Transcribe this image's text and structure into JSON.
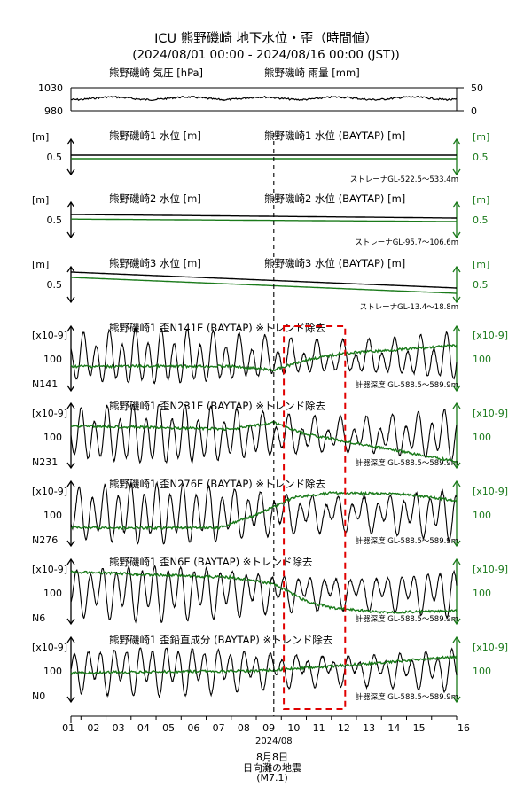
{
  "title": "ICU 熊野磯崎 地下水位・歪（時間値）",
  "subtitle": "(2024/08/01 00:00 - 2024/08/16 00:00 (JST))",
  "colors": {
    "black": "#000000",
    "green": "#1a7a1a",
    "event": "#e00000"
  },
  "x_axis": {
    "ticks": [
      "01",
      "02",
      "03",
      "04",
      "05",
      "06",
      "07",
      "08",
      "09",
      "10",
      "11",
      "12",
      "13",
      "14",
      "15",
      "16"
    ],
    "month_label": "2024/08"
  },
  "event": {
    "date_label": "8月8日",
    "name": "日向灘の地震",
    "magnitude": "(M7.1)",
    "day": 8.7,
    "box_start": 9.1,
    "box_end": 11.55
  },
  "chart_data": [
    {
      "type": "line",
      "left_title": "熊野磯崎 気圧 [hPa]",
      "right_title": "熊野磯崎 雨量 [mm]",
      "left_ticks": [
        "1030",
        "980"
      ],
      "right_ticks": [
        "50",
        "0"
      ],
      "series": [
        {
          "color": "black",
          "mode": "flat",
          "level": 1010,
          "noise": 2
        }
      ],
      "ylim": [
        980,
        1030
      ]
    },
    {
      "type": "line",
      "left_title": "熊野磯崎1 水位 [m]",
      "right_title": "熊野磯崎1 水位 (BAYTAP) [m]",
      "left_unit": "[m]",
      "right_unit": "[m]",
      "left_value": "0.5",
      "right_value": "0.5",
      "note": "ストレーナGL-522.5～533.4m",
      "series": [
        {
          "color": "black",
          "mode": "linear",
          "start": 0.55,
          "end": 0.55
        },
        {
          "color": "green",
          "mode": "linear",
          "start": 0.45,
          "end": 0.45
        }
      ]
    },
    {
      "type": "line",
      "left_title": "熊野磯崎2 水位 [m]",
      "right_title": "熊野磯崎2 水位 (BAYTAP) [m]",
      "left_unit": "[m]",
      "right_unit": "[m]",
      "left_value": "0.5",
      "right_value": "0.5",
      "note": "ストレーナGL-95.7～106.6m",
      "series": [
        {
          "color": "black",
          "mode": "linear",
          "start": 0.65,
          "end": 0.55
        },
        {
          "color": "green",
          "mode": "linear",
          "start": 0.52,
          "end": 0.45
        }
      ]
    },
    {
      "type": "line",
      "left_title": "熊野磯崎3 水位 [m]",
      "right_title": "熊野磯崎3 水位 (BAYTAP) [m]",
      "left_unit": "[m]",
      "right_unit": "[m]",
      "left_value": "0.5",
      "right_value": "0.5",
      "note": "ストレーナGL-13.4～18.8m",
      "series": [
        {
          "color": "black",
          "mode": "linear",
          "start": 0.85,
          "end": 0.4
        },
        {
          "color": "green",
          "mode": "linear",
          "start": 0.7,
          "end": 0.25
        }
      ]
    },
    {
      "type": "line",
      "left_title": "熊野磯崎1 歪N141E (BAYTAP) ※トレンド除去",
      "left_unit": "[x10-9]",
      "right_unit": "[x10-9]",
      "left_value": "100",
      "right_value": "100",
      "component": "N141",
      "note": "計器深度 GL-588.5～589.9m",
      "series": [
        {
          "color": "black",
          "mode": "tidal",
          "amp": 0.35,
          "base": [
            [
              1,
              0.5
            ],
            [
              16,
              0.5
            ]
          ]
        },
        {
          "color": "green",
          "mode": "trend",
          "base": [
            [
              1,
              0.62
            ],
            [
              7,
              0.62
            ],
            [
              8.7,
              0.68
            ],
            [
              10,
              0.52
            ],
            [
              11.5,
              0.42
            ],
            [
              16,
              0.3
            ]
          ]
        }
      ]
    },
    {
      "type": "line",
      "left_title": "熊野磯崎1 歪N231E (BAYTAP) ※トレンド除去",
      "left_unit": "[x10-9]",
      "right_unit": "[x10-9]",
      "left_value": "100",
      "right_value": "100",
      "component": "N231",
      "note": "計器深度 GL-588.5～589.9m",
      "series": [
        {
          "color": "black",
          "mode": "tidal",
          "amp": 0.38,
          "base": [
            [
              1,
              0.5
            ],
            [
              16,
              0.5
            ]
          ]
        },
        {
          "color": "green",
          "mode": "trend",
          "base": [
            [
              1,
              0.35
            ],
            [
              7,
              0.4
            ],
            [
              8.7,
              0.3
            ],
            [
              10,
              0.48
            ],
            [
              12,
              0.62
            ],
            [
              16,
              0.9
            ]
          ]
        }
      ]
    },
    {
      "type": "line",
      "left_title": "熊野磯崎1 歪N276E (BAYTAP) ※トレンド除去",
      "left_unit": "[x10-9]",
      "right_unit": "[x10-9]",
      "left_value": "100",
      "right_value": "100",
      "component": "N276",
      "note": "計器深度 GL-588.5～589.9m",
      "series": [
        {
          "color": "black",
          "mode": "tidal",
          "amp": 0.38,
          "base": [
            [
              1,
              0.5
            ],
            [
              16,
              0.5
            ]
          ]
        },
        {
          "color": "green",
          "mode": "trend",
          "base": [
            [
              1,
              0.72
            ],
            [
              6.5,
              0.72
            ],
            [
              8,
              0.52
            ],
            [
              9.5,
              0.25
            ],
            [
              11,
              0.18
            ],
            [
              14,
              0.2
            ],
            [
              16,
              0.3
            ]
          ]
        }
      ]
    },
    {
      "type": "line",
      "left_title": "熊野磯崎1 歪N6E (BAYTAP) ※トレンド除去",
      "left_unit": "[x10-9]",
      "right_unit": "[x10-9]",
      "left_value": "100",
      "right_value": "100",
      "component": "N6",
      "note": "計器深度 GL-588.5～589.9m",
      "series": [
        {
          "color": "black",
          "mode": "tidal",
          "amp": 0.35,
          "base": [
            [
              1,
              0.5
            ],
            [
              16,
              0.5
            ]
          ]
        },
        {
          "color": "green",
          "mode": "trend",
          "base": [
            [
              1,
              0.2
            ],
            [
              7,
              0.28
            ],
            [
              8.7,
              0.38
            ],
            [
              10,
              0.65
            ],
            [
              11,
              0.75
            ],
            [
              13,
              0.82
            ],
            [
              16,
              0.8
            ]
          ]
        }
      ]
    },
    {
      "type": "line",
      "left_title": "熊野磯崎1 歪鉛直成分 (BAYTAP) ※トレンド除去",
      "left_unit": "[x10-9]",
      "right_unit": "[x10-9]",
      "left_value": "100",
      "right_value": "100",
      "component": "N0",
      "note": "計器深度 GL-588.5～589.9m",
      "series": [
        {
          "color": "black",
          "mode": "tidal",
          "amp": 0.3,
          "base": [
            [
              1,
              0.5
            ],
            [
              16,
              0.5
            ]
          ]
        },
        {
          "color": "green",
          "mode": "trend",
          "base": [
            [
              1,
              0.55
            ],
            [
              8,
              0.52
            ],
            [
              11,
              0.45
            ],
            [
              16,
              0.3
            ]
          ]
        }
      ]
    }
  ]
}
